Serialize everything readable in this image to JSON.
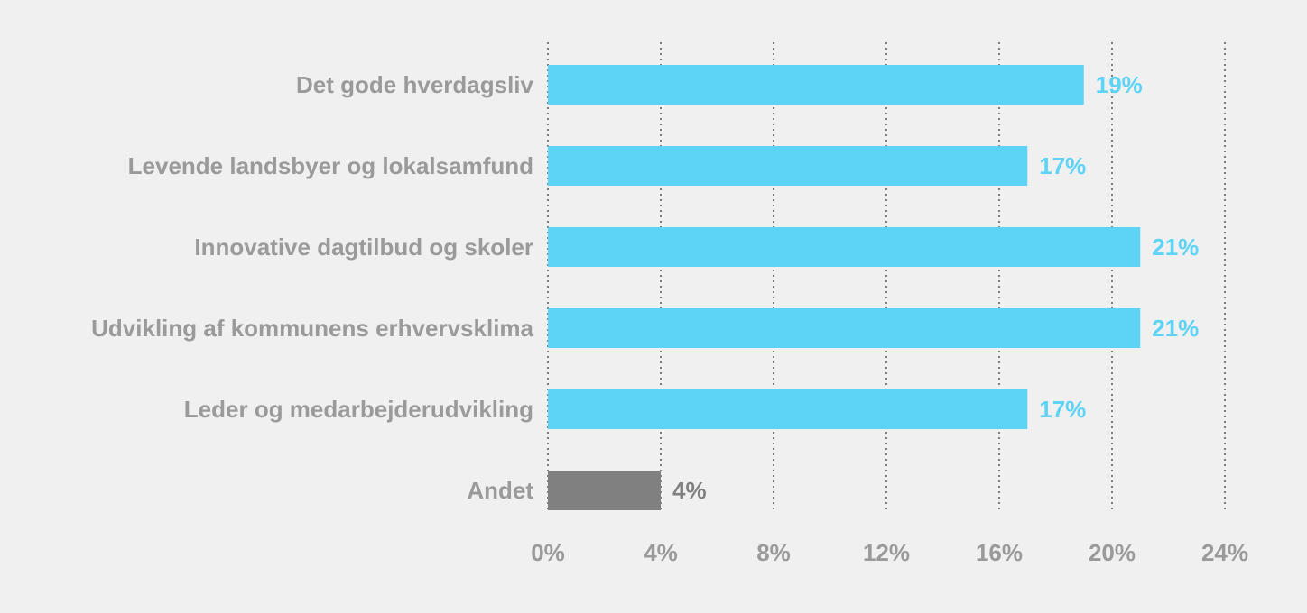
{
  "chart_data": {
    "type": "bar",
    "orientation": "horizontal",
    "categories": [
      "Det gode hverdagsliv",
      "Levende landsbyer og lokalsamfund",
      "Innovative dagtilbud og skoler",
      "Udvikling af kommunens erhvervsklima",
      "Leder og medarbejderudvikling",
      "Andet"
    ],
    "values": [
      19,
      17,
      21,
      21,
      17,
      4
    ],
    "value_labels": [
      "19%",
      "17%",
      "21%",
      "21%",
      "17%",
      "4%"
    ],
    "bar_colors": [
      "#5dd3f5",
      "#5dd3f5",
      "#5dd3f5",
      "#5dd3f5",
      "#5dd3f5",
      "#808080"
    ],
    "label_colors": [
      "#5dd3f5",
      "#5dd3f5",
      "#5dd3f5",
      "#5dd3f5",
      "#5dd3f5",
      "#808080"
    ],
    "xticks": [
      0,
      4,
      8,
      12,
      16,
      20,
      24
    ],
    "xtick_labels": [
      "0%",
      "4%",
      "8%",
      "12%",
      "16%",
      "20%",
      "24%"
    ],
    "xlim": [
      0,
      24
    ],
    "grid": true,
    "title": "",
    "xlabel": "",
    "ylabel": ""
  }
}
